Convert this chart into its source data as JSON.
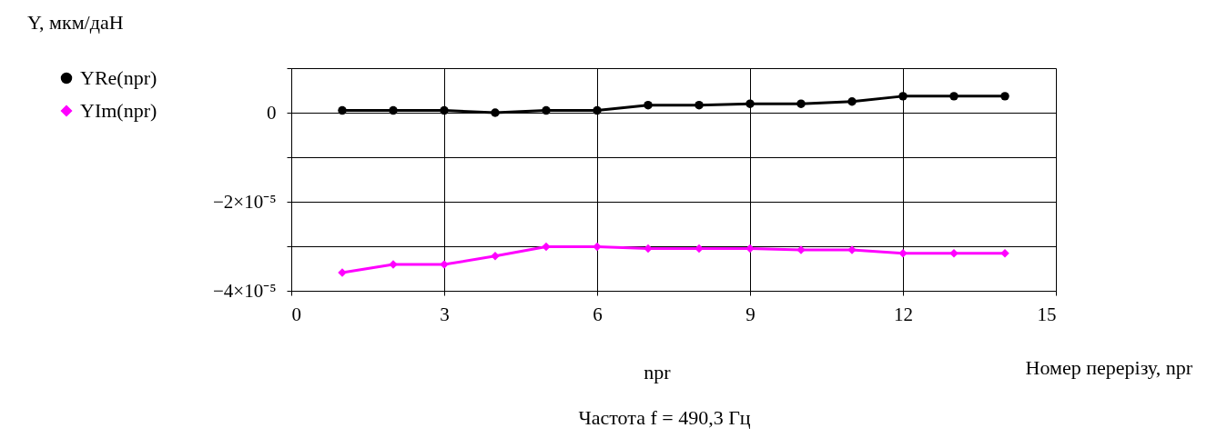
{
  "chart_data": {
    "type": "line",
    "ylabel": "Y, мкм/даН",
    "xlabel": "Номер перерізу, npr",
    "annotations": [
      "npr",
      "Частота f = 490,3 Гц"
    ],
    "x": [
      1,
      2,
      3,
      4,
      5,
      6,
      7,
      8,
      9,
      10,
      11,
      12,
      13,
      14
    ],
    "series": [
      {
        "name": "YRe(npr)",
        "color": "#000000",
        "marker": "circle",
        "values": [
          5e-07,
          5e-07,
          5e-07,
          0,
          5e-07,
          5e-07,
          1.7e-06,
          1.7e-06,
          2e-06,
          2e-06,
          2.5e-06,
          3.7e-06,
          3.7e-06,
          3.7e-06
        ]
      },
      {
        "name": "YIm(npr)",
        "color": "#ff00ff",
        "marker": "diamond",
        "values": [
          -3.59e-05,
          -3.41e-05,
          -3.41e-05,
          -3.22e-05,
          -3.01e-05,
          -3.01e-05,
          -3.05e-05,
          -3.05e-05,
          -3.05e-05,
          -3.08e-05,
          -3.08e-05,
          -3.16e-05,
          -3.16e-05,
          -3.16e-05
        ]
      }
    ],
    "xlim": [
      0,
      15
    ],
    "xticks": [
      0,
      3,
      6,
      9,
      12,
      15
    ],
    "ylim": [
      -4e-05,
      1e-05
    ],
    "yticks": [
      {
        "value": -4e-05,
        "label": "−4×10⁻⁵"
      },
      {
        "value": -3e-05,
        "label": null
      },
      {
        "value": -2e-05,
        "label": "−2×10⁻⁵"
      },
      {
        "value": -1e-05,
        "label": null
      },
      {
        "value": 0,
        "label": "0"
      },
      {
        "value": 1e-05,
        "label": null
      }
    ],
    "grid": true,
    "legend": "left",
    "line_style": "solid"
  }
}
